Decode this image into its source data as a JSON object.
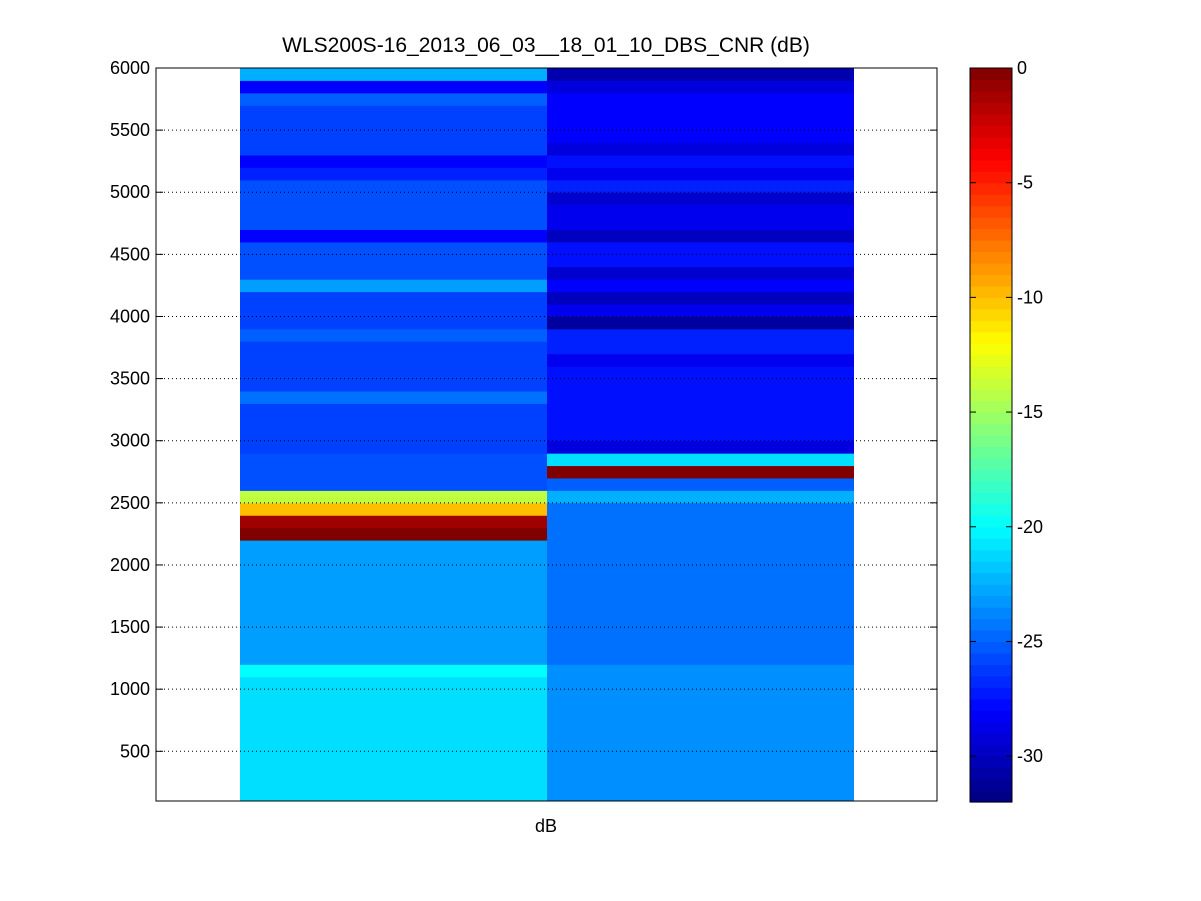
{
  "chart_data": {
    "type": "heatmap",
    "title": "WLS200S-16_2013_06_03__18_01_10_DBS_CNR (dB)",
    "xlabel": "dB",
    "ylabel": "",
    "ylim": [
      100,
      6000
    ],
    "yticks": [
      500,
      1000,
      1500,
      2000,
      2500,
      3000,
      3500,
      4000,
      4500,
      5000,
      5500,
      6000
    ],
    "grid": "y-dotted",
    "colormap": "jet",
    "colorbar": {
      "position": "right",
      "clim": [
        -32,
        0
      ],
      "ticks": [
        0,
        -5,
        -10,
        -15,
        -20,
        -25,
        -30
      ]
    },
    "columns": [
      {
        "bands": [
          {
            "from": 100,
            "to": 1100,
            "value": -21
          },
          {
            "from": 1100,
            "to": 1200,
            "value": -20
          },
          {
            "from": 1200,
            "to": 2200,
            "value": -23
          },
          {
            "from": 2200,
            "to": 2300,
            "value": 0
          },
          {
            "from": 2300,
            "to": 2400,
            "value": -1
          },
          {
            "from": 2400,
            "to": 2500,
            "value": -10
          },
          {
            "from": 2500,
            "to": 2600,
            "value": -14
          },
          {
            "from": 2600,
            "to": 2900,
            "value": -25.5
          },
          {
            "from": 2900,
            "to": 3300,
            "value": -26
          },
          {
            "from": 3300,
            "to": 3400,
            "value": -24.5
          },
          {
            "from": 3400,
            "to": 3800,
            "value": -26
          },
          {
            "from": 3800,
            "to": 3900,
            "value": -25
          },
          {
            "from": 3900,
            "to": 4200,
            "value": -26
          },
          {
            "from": 4200,
            "to": 4300,
            "value": -23
          },
          {
            "from": 4300,
            "to": 4600,
            "value": -25.5
          },
          {
            "from": 4600,
            "to": 4700,
            "value": -28
          },
          {
            "from": 4700,
            "to": 5100,
            "value": -25.5
          },
          {
            "from": 5100,
            "to": 5200,
            "value": -27
          },
          {
            "from": 5200,
            "to": 5300,
            "value": -28
          },
          {
            "from": 5300,
            "to": 5700,
            "value": -26
          },
          {
            "from": 5700,
            "to": 5800,
            "value": -25
          },
          {
            "from": 5800,
            "to": 5900,
            "value": -28
          },
          {
            "from": 5900,
            "to": 6000,
            "value": -22.5
          }
        ]
      },
      {
        "bands": [
          {
            "from": 100,
            "to": 1200,
            "value": -23.5
          },
          {
            "from": 1200,
            "to": 2500,
            "value": -24.5
          },
          {
            "from": 2500,
            "to": 2600,
            "value": -22.5
          },
          {
            "from": 2600,
            "to": 2700,
            "value": -25
          },
          {
            "from": 2700,
            "to": 2800,
            "value": 0
          },
          {
            "from": 2800,
            "to": 2900,
            "value": -21
          },
          {
            "from": 2900,
            "to": 3000,
            "value": -29
          },
          {
            "from": 3000,
            "to": 3600,
            "value": -27.5
          },
          {
            "from": 3600,
            "to": 3700,
            "value": -28.5
          },
          {
            "from": 3700,
            "to": 3900,
            "value": -27
          },
          {
            "from": 3900,
            "to": 4000,
            "value": -31
          },
          {
            "from": 4000,
            "to": 4100,
            "value": -28.5
          },
          {
            "from": 4100,
            "to": 4200,
            "value": -30
          },
          {
            "from": 4200,
            "to": 4300,
            "value": -28
          },
          {
            "from": 4300,
            "to": 4400,
            "value": -29.5
          },
          {
            "from": 4400,
            "to": 4600,
            "value": -27.5
          },
          {
            "from": 4600,
            "to": 4700,
            "value": -30
          },
          {
            "from": 4700,
            "to": 4900,
            "value": -28.5
          },
          {
            "from": 4900,
            "to": 5000,
            "value": -29.5
          },
          {
            "from": 5000,
            "to": 5100,
            "value": -27
          },
          {
            "from": 5100,
            "to": 5200,
            "value": -28.5
          },
          {
            "from": 5200,
            "to": 5300,
            "value": -27.5
          },
          {
            "from": 5300,
            "to": 5400,
            "value": -29
          },
          {
            "from": 5400,
            "to": 5800,
            "value": -28
          },
          {
            "from": 5800,
            "to": 5900,
            "value": -29
          },
          {
            "from": 5900,
            "to": 6000,
            "value": -30.5
          }
        ]
      }
    ]
  }
}
